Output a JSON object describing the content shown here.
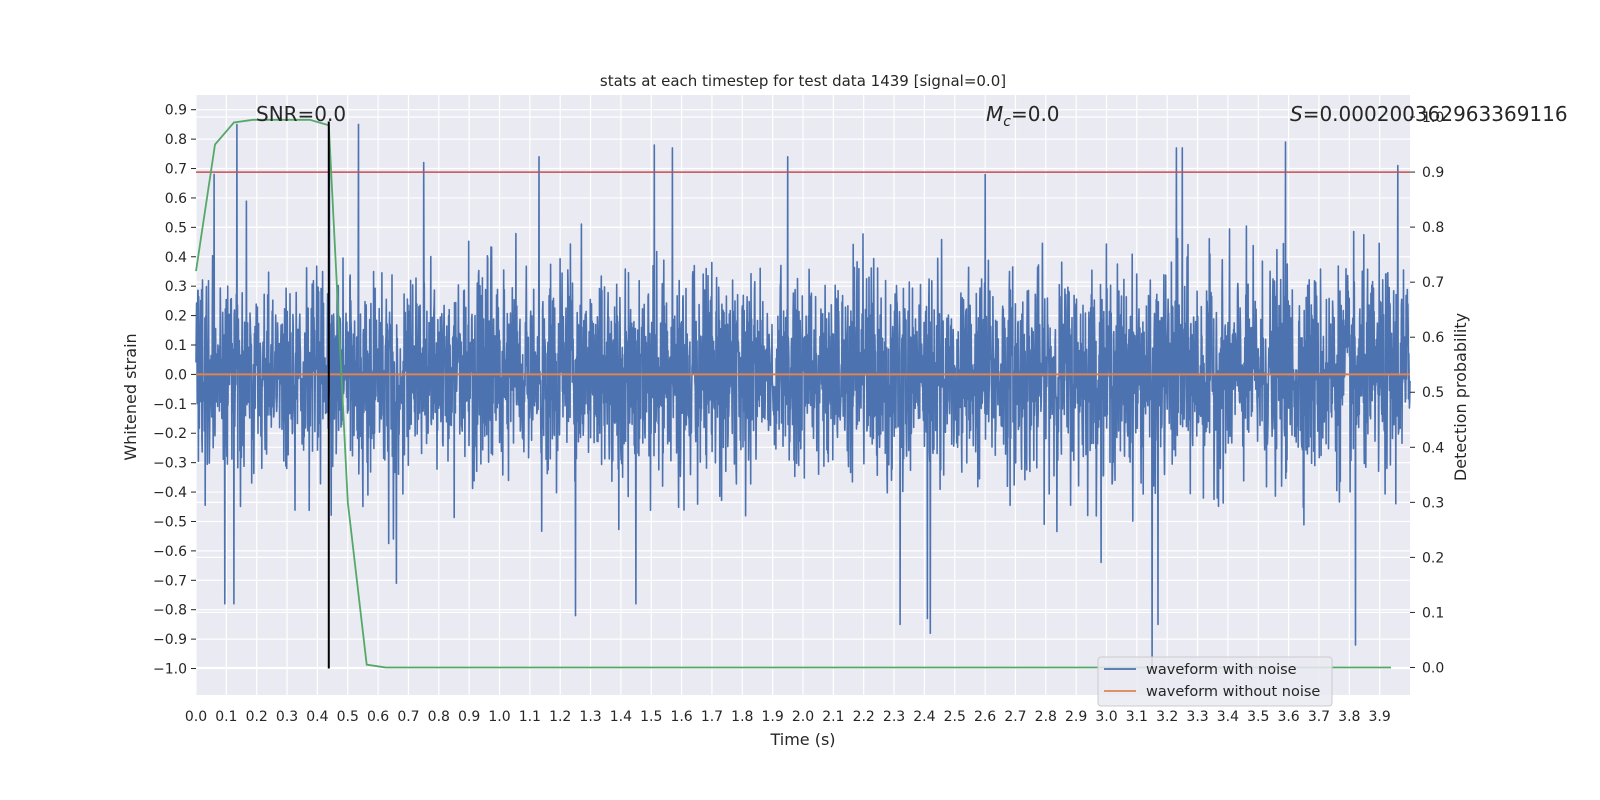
{
  "chart_data": {
    "type": "line",
    "title": "stats at each timestep for test data 1439 [signal=0.0]",
    "xlabel": "Time (s)",
    "ylabel_left": "Whitened strain",
    "ylabel_right": "Detection probability",
    "xlim": [
      0.0,
      4.0
    ],
    "ylim_left": [
      -1.09,
      0.95
    ],
    "ylim_right": [
      -0.05,
      1.04
    ],
    "xticks": [
      "0.0",
      "0.1",
      "0.2",
      "0.3",
      "0.4",
      "0.5",
      "0.6",
      "0.7",
      "0.8",
      "0.9",
      "1.0",
      "1.1",
      "1.2",
      "1.3",
      "1.4",
      "1.5",
      "1.6",
      "1.7",
      "1.8",
      "1.9",
      "2.0",
      "2.1",
      "2.2",
      "2.3",
      "2.4",
      "2.5",
      "2.6",
      "2.7",
      "2.8",
      "2.9",
      "3.0",
      "3.1",
      "3.2",
      "3.3",
      "3.4",
      "3.5",
      "3.6",
      "3.7",
      "3.8",
      "3.9"
    ],
    "yticks_left": [
      "0.9",
      "0.8",
      "0.7",
      "0.6",
      "0.5",
      "0.4",
      "0.3",
      "0.2",
      "0.1",
      "0.0",
      "−0.1",
      "−0.2",
      "−0.3",
      "−0.4",
      "−0.5",
      "−0.6",
      "−0.7",
      "−0.8",
      "−0.9",
      "−1.0"
    ],
    "yticks_right": [
      "1.0",
      "0.9",
      "0.8",
      "0.7",
      "0.6",
      "0.5",
      "0.4",
      "0.3",
      "0.2",
      "0.1",
      "0.0"
    ],
    "grid": true,
    "legend_position": "lower right",
    "annotations": {
      "snr": "SNR=0.0",
      "mc_symbol": "M",
      "mc_subscript": "c",
      "mc_value": "=0.0",
      "s_symbol": "S",
      "s_value": "=0.00020036296336911​6"
    },
    "noise_waveform": {
      "name": "waveform with noise",
      "color": "#4c72b0",
      "axis": "left",
      "x_range": [
        0.0,
        4.0
      ],
      "samples": 4096,
      "typical_amplitude": 0.17,
      "min": -1.0,
      "max": 0.86,
      "peaks": [
        {
          "x": 0.06,
          "y": 0.68
        },
        {
          "x": 0.095,
          "y": -0.78
        },
        {
          "x": 0.125,
          "y": -0.78
        },
        {
          "x": 0.135,
          "y": 0.85
        },
        {
          "x": 0.44,
          "y": 0.75
        },
        {
          "x": 0.535,
          "y": 0.85
        },
        {
          "x": 0.66,
          "y": -0.71
        },
        {
          "x": 0.75,
          "y": 0.72
        },
        {
          "x": 1.13,
          "y": 0.74
        },
        {
          "x": 1.25,
          "y": -0.82
        },
        {
          "x": 1.45,
          "y": -0.78
        },
        {
          "x": 1.51,
          "y": 0.78
        },
        {
          "x": 1.57,
          "y": 0.77
        },
        {
          "x": 1.95,
          "y": 0.74
        },
        {
          "x": 2.32,
          "y": -0.85
        },
        {
          "x": 2.41,
          "y": -0.83
        },
        {
          "x": 2.42,
          "y": -0.88
        },
        {
          "x": 2.6,
          "y": 0.68
        },
        {
          "x": 3.15,
          "y": -1.0
        },
        {
          "x": 3.17,
          "y": -0.85
        },
        {
          "x": 3.23,
          "y": 0.77
        },
        {
          "x": 3.25,
          "y": 0.77
        },
        {
          "x": 3.59,
          "y": 0.79
        },
        {
          "x": 3.82,
          "y": -0.92
        },
        {
          "x": 3.96,
          "y": 0.71
        }
      ]
    },
    "clean_waveform": {
      "name": "waveform without noise",
      "color": "#dd8452",
      "axis": "left",
      "x": [
        0.0,
        4.0
      ],
      "y": [
        0.0,
        0.0
      ]
    },
    "detection_probability": {
      "color": "#55a868",
      "axis": "right",
      "x": [
        0.0,
        0.0625,
        0.125,
        0.1875,
        0.25,
        0.3125,
        0.375,
        0.4375,
        0.5,
        0.5625,
        0.625,
        0.6875,
        1.0,
        2.0,
        3.0,
        3.9375
      ],
      "y": [
        0.72,
        0.95,
        0.99,
        0.995,
        0.995,
        0.995,
        0.995,
        0.985,
        0.3,
        0.005,
        0.0,
        0.0,
        0.0,
        0.0,
        0.0,
        0.0
      ]
    },
    "threshold": {
      "color": "#c44e52",
      "axis": "right",
      "y": 0.9
    },
    "marker_line": {
      "color": "#000000",
      "x": 0.4375,
      "y_range_left": [
        -1.0,
        0.86
      ]
    }
  }
}
